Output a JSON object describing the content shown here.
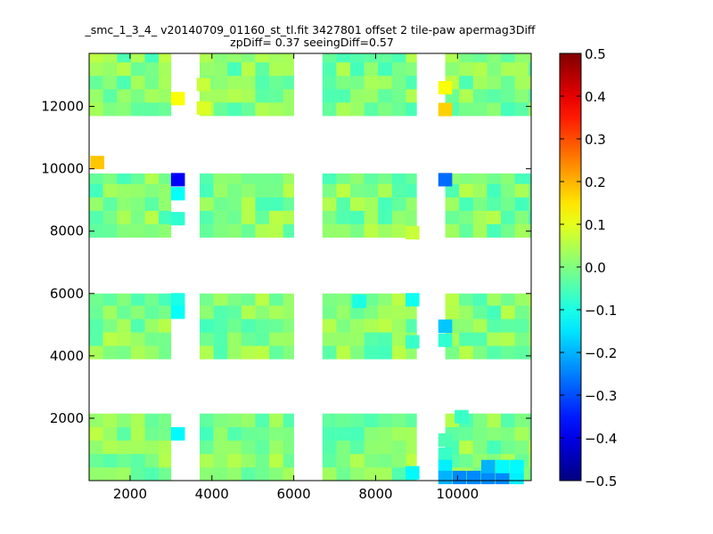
{
  "chart_data": {
    "type": "heatmap",
    "title_line1": "_smc_1_3_4_ v20140709_01160_st_tl.fit 3427801 offset 2 tile-paw apermag3Diff",
    "title_line2": "zpDiff= 0.37 seeingDiff=0.57",
    "xlabel": "",
    "ylabel": "",
    "xlim": [
      1000,
      11800
    ],
    "ylim": [
      0,
      13700
    ],
    "x_ticks": [
      2000,
      4000,
      6000,
      8000,
      10000
    ],
    "x_tick_labels": [
      "2000",
      "4000",
      "6000",
      "8000",
      "10000"
    ],
    "y_ticks": [
      2000,
      4000,
      6000,
      8000,
      10000,
      12000
    ],
    "y_tick_labels": [
      "2000",
      "4000",
      "6000",
      "8000",
      "10000",
      "12000"
    ],
    "colorbar": {
      "colormap": "jet",
      "vmin": -0.5,
      "vmax": 0.5,
      "ticks": [
        0.5,
        0.4,
        0.3,
        0.2,
        0.1,
        0.0,
        -0.1,
        -0.2,
        -0.3,
        -0.4,
        -0.5
      ],
      "tick_labels": [
        "0.5",
        "0.4",
        "0.3",
        "0.2",
        "0.1",
        "0.0",
        "−0.1",
        "−0.2",
        "−0.3",
        "−0.4",
        "−0.5"
      ]
    },
    "grid": false,
    "cell_size": [
      340,
      430
    ],
    "typical_value_range": [
      -0.06,
      0.06
    ],
    "notable_cells": [
      {
        "x": 1200,
        "y": 10200,
        "value": 0.18
      },
      {
        "x": 3170,
        "y": 12250,
        "value": 0.12
      },
      {
        "x": 3170,
        "y": 9650,
        "value": -0.38
      },
      {
        "x": 3170,
        "y": 9200,
        "value": -0.12
      },
      {
        "x": 3170,
        "y": 8400,
        "value": -0.08
      },
      {
        "x": 3170,
        "y": 5800,
        "value": -0.1
      },
      {
        "x": 3170,
        "y": 5400,
        "value": -0.12
      },
      {
        "x": 3170,
        "y": 1500,
        "value": -0.13
      },
      {
        "x": 3800,
        "y": 12700,
        "value": 0.07
      },
      {
        "x": 3800,
        "y": 11950,
        "value": 0.09
      },
      {
        "x": 7600,
        "y": 5750,
        "value": -0.1
      },
      {
        "x": 8900,
        "y": 5800,
        "value": -0.11
      },
      {
        "x": 8900,
        "y": 4450,
        "value": -0.07
      },
      {
        "x": 8900,
        "y": 7950,
        "value": 0.07
      },
      {
        "x": 8900,
        "y": 250,
        "value": -0.13
      },
      {
        "x": 9700,
        "y": 12600,
        "value": 0.12
      },
      {
        "x": 9700,
        "y": 11900,
        "value": 0.17
      },
      {
        "x": 9700,
        "y": 9650,
        "value": -0.27
      },
      {
        "x": 9700,
        "y": 4950,
        "value": -0.18
      },
      {
        "x": 9700,
        "y": 4500,
        "value": -0.08
      },
      {
        "x": 9700,
        "y": 1300,
        "value": -0.05
      },
      {
        "x": 9700,
        "y": 850,
        "value": -0.07
      },
      {
        "x": 9700,
        "y": 450,
        "value": -0.14
      },
      {
        "x": 9700,
        "y": 100,
        "value": -0.2
      },
      {
        "x": 10050,
        "y": 100,
        "value": -0.24
      },
      {
        "x": 10400,
        "y": 100,
        "value": -0.24
      },
      {
        "x": 10750,
        "y": 100,
        "value": -0.24
      },
      {
        "x": 10750,
        "y": 450,
        "value": -0.2
      },
      {
        "x": 11100,
        "y": 100,
        "value": -0.24
      },
      {
        "x": 11100,
        "y": 450,
        "value": -0.13
      },
      {
        "x": 11450,
        "y": 100,
        "value": -0.14
      },
      {
        "x": 11450,
        "y": 450,
        "value": -0.13
      },
      {
        "x": 10100,
        "y": 2050,
        "value": -0.07
      }
    ]
  }
}
